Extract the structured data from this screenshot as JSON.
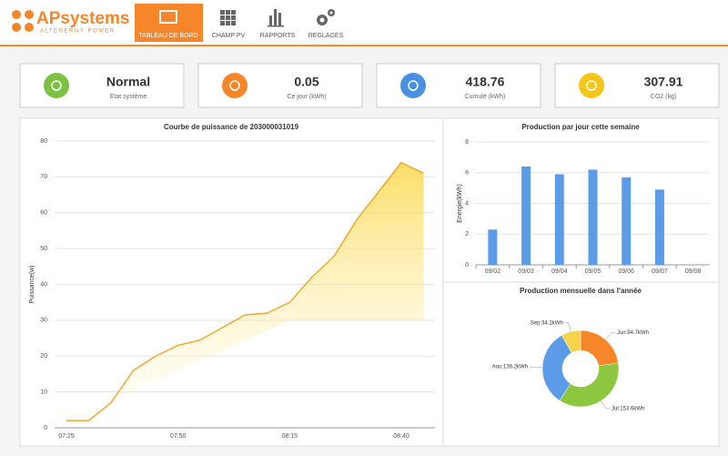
{
  "logo": {
    "name": "APsystems",
    "tagline": "ALTENERGY POWER"
  },
  "nav": [
    "TABLEAU DE BORD",
    "CHAMP PV",
    "RAPPORTS",
    "REGLAGES"
  ],
  "cards": [
    {
      "value": "Normal",
      "label": "Etat système"
    },
    {
      "value": 0.05,
      "label": "Ce jour (kWh)"
    },
    {
      "value": 418.76,
      "label": "Cumulé (kWh)"
    },
    {
      "value": 307.91,
      "label": "CO2 (kg)"
    }
  ],
  "chart_data": [
    {
      "type": "line",
      "title": "Courbe de puissance de 203000031019",
      "ylabel": "Puissance(w)",
      "categories": [
        "07:25",
        null,
        null,
        null,
        null,
        "07:50",
        null,
        null,
        null,
        null,
        "08:15",
        null,
        null,
        null,
        null,
        "08:40",
        null
      ],
      "values": [
        2,
        2,
        7,
        16,
        20,
        23,
        24.5,
        28,
        31.5,
        32,
        35,
        42,
        48,
        58,
        66,
        74,
        71
      ],
      "color": "#f0a830",
      "ylim": [
        0,
        80
      ],
      "yticks": [
        0,
        10,
        20,
        30,
        40,
        50,
        60,
        70,
        80
      ],
      "grid": true
    },
    {
      "type": "bar",
      "title": "Production par jour cette semaine",
      "ylabel": "Energie(kWh)",
      "categories": [
        "09/02",
        "09/03",
        "09/04",
        "09/05",
        "09/06",
        "09/07",
        "09/08"
      ],
      "values": [
        2.3,
        6.4,
        5.9,
        6.2,
        5.7,
        4.9,
        null
      ],
      "color": "#5b9be8",
      "ylim": [
        0,
        8
      ],
      "yticks": [
        0,
        2,
        4,
        6,
        8
      ],
      "grid": true
    },
    {
      "type": "pie",
      "title": "Production mensuelle dans l'année",
      "categories": [
        "Jun",
        "Jul",
        "Aou",
        "Sep"
      ],
      "values": [
        94.7,
        153.6,
        136.2,
        34.2
      ],
      "value_labels": [
        "Jun:94.7kWh",
        "Jul:153.6kWh",
        "Aou:136.2kWh",
        "Sep:34.2kWh"
      ],
      "colors": [
        "#f7862a",
        "#8dc63f",
        "#5b9be8",
        "#f5d547"
      ]
    }
  ]
}
